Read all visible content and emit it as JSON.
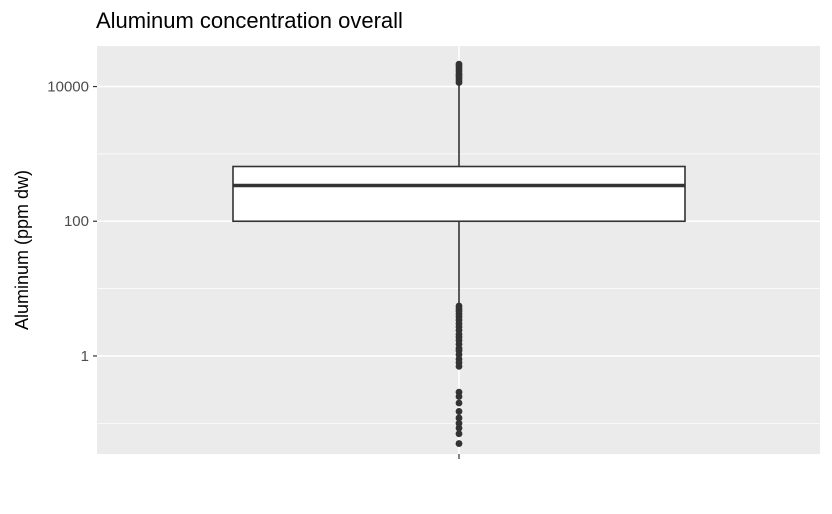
{
  "chart_data": {
    "type": "boxplot",
    "title": "Aluminum concentration overall",
    "xlabel": "",
    "ylabel": "Aluminum (ppm dw)",
    "y_scale": "log10",
    "ylim": [
      0.035,
      40000
    ],
    "y_ticks": [
      1,
      100,
      10000
    ],
    "y_tick_labels": [
      "1",
      "100",
      "10000"
    ],
    "grid": true,
    "box": {
      "q1": 100,
      "median": 340,
      "q3": 650,
      "whisker_low": 6,
      "whisker_high": 11000
    },
    "outliers_high": [
      11500,
      12500,
      13500,
      14500,
      15500,
      17000,
      18500,
      20000,
      21500
    ],
    "outliers_low": [
      5.5,
      5.0,
      4.6,
      4.2,
      3.8,
      3.4,
      3.0,
      2.7,
      2.4,
      2.1,
      1.9,
      1.7,
      1.5,
      1.3,
      1.2,
      1.05,
      0.9,
      0.8,
      0.7,
      0.29,
      0.25,
      0.2,
      0.15,
      0.12,
      0.1,
      0.085,
      0.07,
      0.05
    ]
  },
  "colors": {
    "panel": "#ebebeb",
    "grid": "#ffffff",
    "box_line": "#333333",
    "box_fill": "#ffffff",
    "point": "#333333"
  }
}
